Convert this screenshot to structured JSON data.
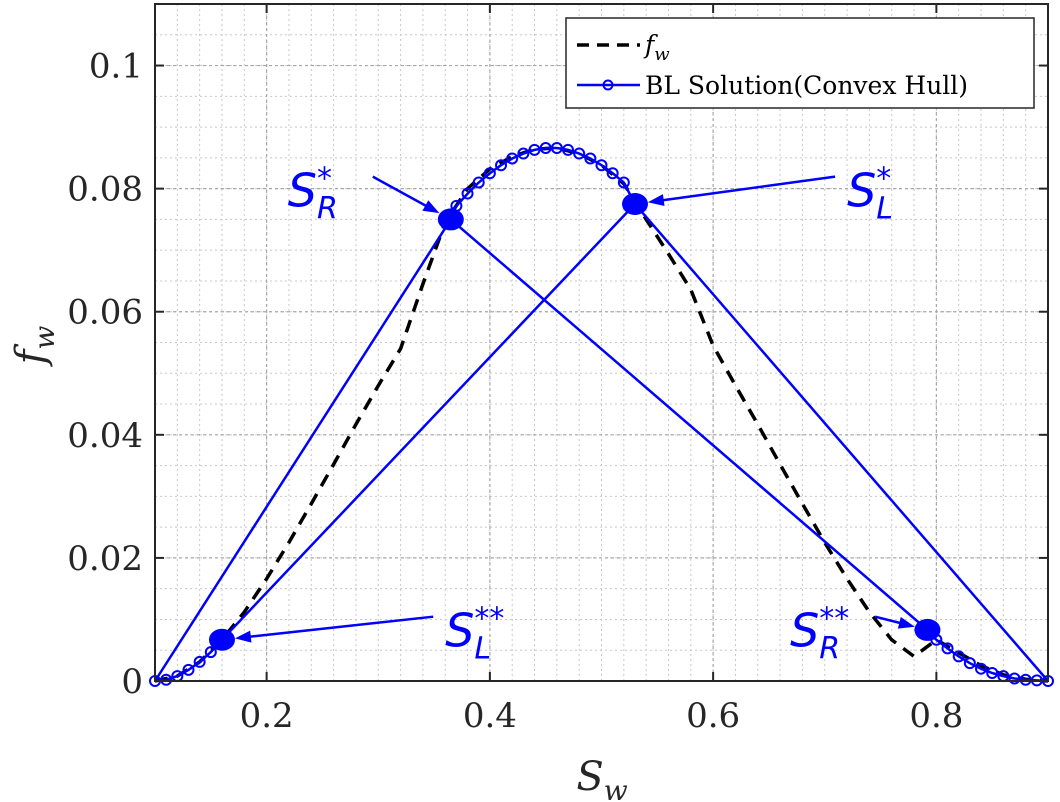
{
  "chart_data": {
    "type": "line",
    "xlabel": {
      "base": "S",
      "sub": "w"
    },
    "ylabel": {
      "base": "f",
      "sub": "w"
    },
    "xlim": [
      0.1,
      0.9
    ],
    "ylim": [
      0,
      0.11
    ],
    "x_ticks": [
      0.2,
      0.4,
      0.6,
      0.8
    ],
    "x_tick_labels": [
      "0.2",
      "0.4",
      "0.6",
      "0.8"
    ],
    "y_ticks": [
      0,
      0.02,
      0.04,
      0.06,
      0.08,
      0.1
    ],
    "y_tick_labels": [
      "0",
      "0.02",
      "0.04",
      "0.06",
      "0.08",
      "0.1"
    ],
    "grid": true,
    "minor_grid": true,
    "legend_position": "top-right",
    "colors": {
      "dashed": "#000000",
      "solution": "#0000ff",
      "axis": "#262626",
      "grid": "#c8c8c8"
    },
    "series": [
      {
        "name": "f_w",
        "legend_base": "f",
        "legend_sub": "w",
        "style": "dashed",
        "x": [
          0.1,
          0.12,
          0.14,
          0.16,
          0.18,
          0.2,
          0.22,
          0.24,
          0.26,
          0.28,
          0.3,
          0.32,
          0.34,
          0.36,
          0.38,
          0.4,
          0.42,
          0.44,
          0.46,
          0.48,
          0.5,
          0.52,
          0.54,
          0.56,
          0.58,
          0.6,
          0.62,
          0.64,
          0.66,
          0.68,
          0.7,
          0.72,
          0.74,
          0.76,
          0.78,
          0.8,
          0.82,
          0.84,
          0.86,
          0.88,
          0.9
        ],
        "y": [
          0.0,
          0.0008,
          0.0031,
          0.0067,
          0.0112,
          0.0166,
          0.0225,
          0.0288,
          0.0352,
          0.0417,
          0.048,
          0.054,
          0.0645,
          0.0745,
          0.08,
          0.0832,
          0.0852,
          0.0864,
          0.0866,
          0.0857,
          0.0838,
          0.0808,
          0.075,
          0.0694,
          0.0636,
          0.0545,
          0.048,
          0.0417,
          0.0352,
          0.0288,
          0.0225,
          0.0166,
          0.0112,
          0.0067,
          0.004,
          0.0067,
          0.0046,
          0.0025,
          0.001,
          0.0003,
          0.0
        ]
      },
      {
        "name": "BL Solution(Convex Hull)",
        "style": "solid-circle-markers",
        "curve_x": [
          0.1,
          0.11,
          0.12,
          0.13,
          0.14,
          0.15,
          0.16,
          0.36,
          0.37,
          0.38,
          0.39,
          0.4,
          0.41,
          0.42,
          0.43,
          0.44,
          0.45,
          0.46,
          0.47,
          0.48,
          0.49,
          0.5,
          0.51,
          0.52,
          0.53,
          0.79,
          0.8,
          0.81,
          0.82,
          0.83,
          0.84,
          0.85,
          0.86,
          0.87,
          0.88,
          0.89,
          0.9
        ],
        "curve_y": [
          0.0,
          0.0002,
          0.0008,
          0.0018,
          0.0031,
          0.0047,
          0.0067,
          0.075,
          0.0772,
          0.0792,
          0.081,
          0.0825,
          0.0838,
          0.0849,
          0.0857,
          0.0863,
          0.0866,
          0.0866,
          0.0863,
          0.0857,
          0.0849,
          0.0838,
          0.0825,
          0.081,
          0.0775,
          0.0083,
          0.0067,
          0.0053,
          0.004,
          0.0029,
          0.002,
          0.0013,
          0.0008,
          0.0004,
          0.0002,
          0.0001,
          0.0
        ],
        "hull_lines": [
          {
            "x": [
              0.1,
              0.365
            ],
            "y": [
              0.0,
              0.075
            ]
          },
          {
            "x": [
              0.365,
              0.792
            ],
            "y": [
              0.075,
              0.0083
            ]
          },
          {
            "x": [
              0.16,
              0.53
            ],
            "y": [
              0.0067,
              0.0775
            ]
          },
          {
            "x": [
              0.53,
              0.9
            ],
            "y": [
              0.0775,
              0.0
            ]
          }
        ]
      }
    ],
    "points": [
      {
        "id": "SR_star",
        "label_base": "S",
        "label_sup": "*",
        "label_sub": "R",
        "x": 0.365,
        "y": 0.075,
        "label_x": 0.21,
        "label_y": 0.08
      },
      {
        "id": "SL_star",
        "label_base": "S",
        "label_sup": "*",
        "label_sub": "L",
        "x": 0.53,
        "y": 0.0775,
        "label_x": 0.72,
        "label_y": 0.08
      },
      {
        "id": "SL_dstar",
        "label_base": "S",
        "label_sup": "**",
        "label_sub": "L",
        "x": 0.16,
        "y": 0.0067,
        "label_x": 0.36,
        "label_y": 0.0085
      },
      {
        "id": "SR_dstar",
        "label_base": "S",
        "label_sup": "**",
        "label_sub": "R",
        "x": 0.792,
        "y": 0.0083,
        "label_x": 0.66,
        "label_y": 0.0085
      }
    ]
  }
}
